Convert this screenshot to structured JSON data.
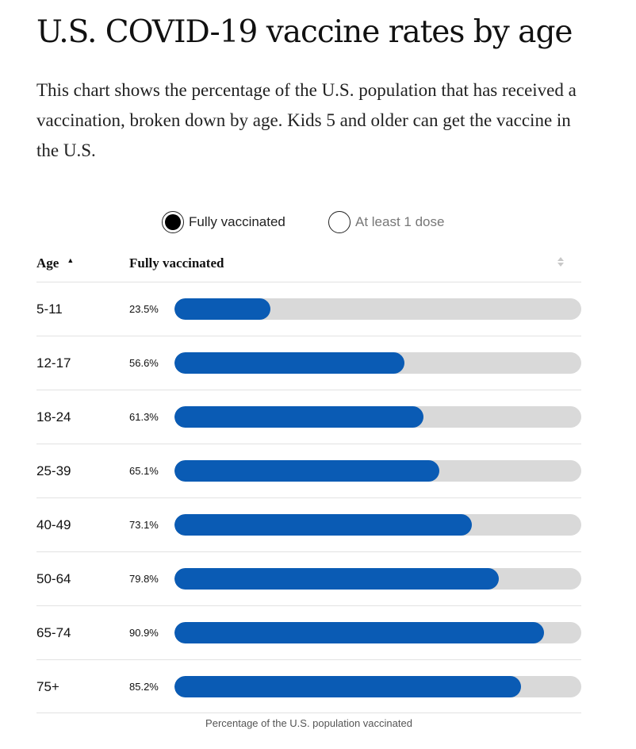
{
  "header": {
    "title": "U.S. COVID-19 vaccine rates by age",
    "subtitle": "This chart shows the percentage of the U.S. population that has received a vaccination, broken down by age. Kids 5 and older can get the vaccine in the U.S."
  },
  "toggles": {
    "full_label": "Fully vaccinated",
    "dose_label": "At least 1 dose",
    "selected": "Fully vaccinated"
  },
  "table": {
    "age_header": "Age",
    "value_header": "Fully vaccinated",
    "footer": "Percentage of the U.S. population vaccinated"
  },
  "colors": {
    "bar": "#0a5bb4",
    "track": "#d9d9d9"
  },
  "chart_data": {
    "type": "bar",
    "orientation": "horizontal",
    "title": "U.S. COVID-19 vaccine rates by age",
    "xlabel": "Percentage of the U.S. population vaccinated",
    "ylabel": "Age",
    "xlim": [
      0,
      100
    ],
    "categories": [
      "5-11",
      "12-17",
      "18-24",
      "25-39",
      "40-49",
      "50-64",
      "65-74",
      "75+"
    ],
    "values": [
      23.5,
      56.6,
      61.3,
      65.1,
      73.1,
      79.8,
      90.9,
      85.2
    ],
    "labels": [
      "23.5%",
      "56.6%",
      "61.3%",
      "65.1%",
      "73.1%",
      "79.8%",
      "90.9%",
      "85.2%"
    ],
    "series": [
      {
        "name": "Fully vaccinated",
        "values": [
          23.5,
          56.6,
          61.3,
          65.1,
          73.1,
          79.8,
          90.9,
          85.2
        ]
      }
    ]
  }
}
